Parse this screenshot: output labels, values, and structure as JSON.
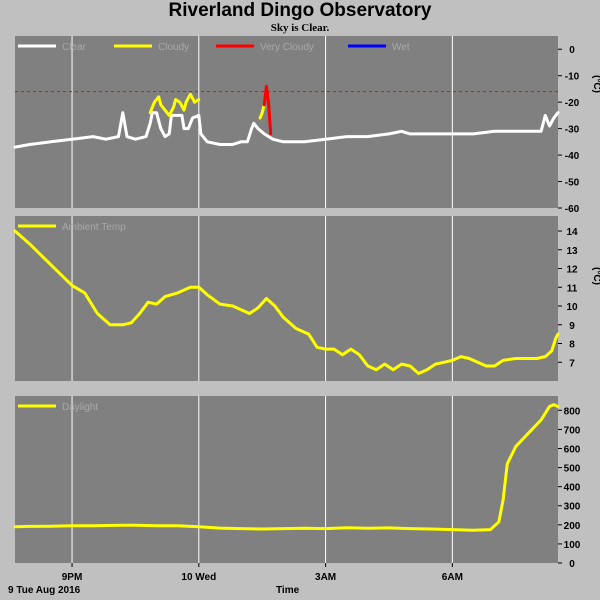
{
  "title": "Riverland Dingo Observatory",
  "subtitle": "Sky is Clear.",
  "footer": {
    "date": "9 Tue Aug 2016",
    "xlabel": "Time"
  },
  "x_ticks": [
    {
      "label": "9PM",
      "hour": 21
    },
    {
      "label": "10 Wed",
      "hour": 24
    },
    {
      "label": "3AM",
      "hour": 27
    },
    {
      "label": "6AM",
      "hour": 30
    }
  ],
  "x_range_hours": [
    19.65,
    32.5
  ],
  "chart_data": [
    {
      "type": "line",
      "unit": "(°C)",
      "ylim": [
        -60,
        5
      ],
      "yticks": [
        0,
        -10,
        -20,
        -30,
        -40,
        -50,
        -60
      ],
      "threshold": {
        "value": -16,
        "color": "#ff0000",
        "style": "dashed"
      },
      "legend": [
        {
          "name": "Clear",
          "color": "#ffffff"
        },
        {
          "name": "Cloudy",
          "color": "#ffff00"
        },
        {
          "name": "Very Cloudy",
          "color": "#ff0000"
        },
        {
          "name": "Wet",
          "color": "#0000ff"
        }
      ],
      "series": [
        {
          "name": "Clear",
          "color": "#ffffff",
          "segments": [
            [
              [
                19.65,
                -37
              ],
              [
                20.0,
                -36
              ],
              [
                20.5,
                -35
              ],
              [
                21.0,
                -34
              ],
              [
                21.5,
                -33
              ],
              [
                21.8,
                -34
              ],
              [
                22.1,
                -33
              ],
              [
                22.2,
                -24
              ],
              [
                22.3,
                -33
              ],
              [
                22.5,
                -34
              ],
              [
                22.75,
                -33
              ],
              [
                22.85,
                -28
              ],
              [
                22.9,
                -24
              ],
              [
                23.0,
                -24
              ],
              [
                23.05,
                -27
              ],
              [
                23.1,
                -30
              ],
              [
                23.2,
                -33
              ],
              [
                23.3,
                -32
              ],
              [
                23.35,
                -25
              ],
              [
                23.5,
                -25
              ],
              [
                23.6,
                -25
              ],
              [
                23.65,
                -30
              ],
              [
                23.75,
                -30
              ],
              [
                23.85,
                -26
              ],
              [
                24.0,
                -25
              ],
              [
                24.05,
                -32
              ],
              [
                24.2,
                -35
              ],
              [
                24.5,
                -36
              ],
              [
                24.8,
                -36
              ],
              [
                25.0,
                -35
              ],
              [
                25.15,
                -35
              ],
              [
                25.25,
                -30
              ],
              [
                25.3,
                -28
              ],
              [
                25.4,
                -30
              ],
              [
                25.55,
                -32
              ],
              [
                25.75,
                -34
              ],
              [
                26.0,
                -35
              ],
              [
                26.5,
                -35
              ],
              [
                27.0,
                -34
              ],
              [
                27.5,
                -33
              ],
              [
                28.0,
                -33
              ],
              [
                28.5,
                -32
              ],
              [
                28.8,
                -31
              ],
              [
                29.0,
                -32
              ],
              [
                29.5,
                -32
              ],
              [
                30.0,
                -32
              ],
              [
                30.5,
                -32
              ],
              [
                31.0,
                -31
              ],
              [
                31.5,
                -31
              ],
              [
                32.0,
                -31
              ],
              [
                32.1,
                -31
              ],
              [
                32.2,
                -25
              ],
              [
                32.3,
                -29
              ],
              [
                32.4,
                -26
              ],
              [
                32.5,
                -24
              ]
            ]
          ]
        },
        {
          "name": "Cloudy",
          "color": "#ffff00",
          "segments": [
            [
              [
                22.85,
                -24
              ],
              [
                22.95,
                -20
              ],
              [
                23.05,
                -18
              ],
              [
                23.1,
                -21
              ],
              [
                23.2,
                -23
              ],
              [
                23.3,
                -25
              ],
              [
                23.4,
                -22
              ],
              [
                23.45,
                -19
              ],
              [
                23.55,
                -20
              ],
              [
                23.65,
                -23
              ],
              [
                23.7,
                -20
              ],
              [
                23.8,
                -17
              ],
              [
                23.9,
                -20
              ],
              [
                24.0,
                -19
              ]
            ],
            [
              [
                25.45,
                -26
              ],
              [
                25.5,
                -24
              ],
              [
                25.55,
                -21
              ]
            ]
          ]
        },
        {
          "name": "Very Cloudy",
          "color": "#ff0000",
          "segments": [
            [
              [
                25.55,
                -21
              ],
              [
                25.6,
                -14
              ],
              [
                25.65,
                -20
              ],
              [
                25.7,
                -32
              ]
            ]
          ]
        }
      ]
    },
    {
      "type": "line",
      "unit": "(°C)",
      "ylim": [
        6,
        14.8
      ],
      "yticks": [
        14,
        13,
        12,
        11,
        10,
        9,
        8,
        7
      ],
      "legend": [
        {
          "name": "Ambient Temp",
          "color": "#ffff00"
        }
      ],
      "series": [
        {
          "name": "Ambient Temp",
          "color": "#ffff00",
          "segments": [
            [
              [
                19.65,
                14
              ],
              [
                20.0,
                13.3
              ],
              [
                20.5,
                12.2
              ],
              [
                21.0,
                11.1
              ],
              [
                21.3,
                10.7
              ],
              [
                21.6,
                9.6
              ],
              [
                21.9,
                9.0
              ],
              [
                22.2,
                9.0
              ],
              [
                22.4,
                9.1
              ],
              [
                22.6,
                9.6
              ],
              [
                22.8,
                10.2
              ],
              [
                23.0,
                10.1
              ],
              [
                23.2,
                10.5
              ],
              [
                23.5,
                10.7
              ],
              [
                23.8,
                11.0
              ],
              [
                24.0,
                11.0
              ],
              [
                24.2,
                10.6
              ],
              [
                24.5,
                10.1
              ],
              [
                24.8,
                10.0
              ],
              [
                25.0,
                9.8
              ],
              [
                25.2,
                9.6
              ],
              [
                25.4,
                9.9
              ],
              [
                25.6,
                10.4
              ],
              [
                25.8,
                10.0
              ],
              [
                26.0,
                9.4
              ],
              [
                26.3,
                8.8
              ],
              [
                26.6,
                8.5
              ],
              [
                26.8,
                7.8
              ],
              [
                27.0,
                7.7
              ],
              [
                27.2,
                7.7
              ],
              [
                27.4,
                7.4
              ],
              [
                27.6,
                7.7
              ],
              [
                27.8,
                7.4
              ],
              [
                28.0,
                6.8
              ],
              [
                28.2,
                6.6
              ],
              [
                28.4,
                6.9
              ],
              [
                28.6,
                6.6
              ],
              [
                28.8,
                6.9
              ],
              [
                29.0,
                6.8
              ],
              [
                29.2,
                6.4
              ],
              [
                29.4,
                6.6
              ],
              [
                29.6,
                6.9
              ],
              [
                29.8,
                7.0
              ],
              [
                30.0,
                7.1
              ],
              [
                30.2,
                7.3
              ],
              [
                30.4,
                7.2
              ],
              [
                30.6,
                7.0
              ],
              [
                30.8,
                6.8
              ],
              [
                31.0,
                6.8
              ],
              [
                31.2,
                7.1
              ],
              [
                31.5,
                7.2
              ],
              [
                32.0,
                7.2
              ],
              [
                32.2,
                7.3
              ],
              [
                32.35,
                7.6
              ],
              [
                32.45,
                8.3
              ],
              [
                32.5,
                8.5
              ]
            ]
          ]
        }
      ]
    },
    {
      "type": "line",
      "unit": "",
      "ylim": [
        0,
        875
      ],
      "yticks": [
        800,
        700,
        600,
        500,
        400,
        300,
        200,
        100,
        0
      ],
      "legend": [
        {
          "name": "Daylight",
          "color": "#ffff00"
        }
      ],
      "series": [
        {
          "name": "Daylight",
          "color": "#ffff00",
          "segments": [
            [
              [
                19.65,
                190
              ],
              [
                20.0,
                192
              ],
              [
                20.5,
                193
              ],
              [
                21.0,
                195
              ],
              [
                21.5,
                195
              ],
              [
                22.0,
                197
              ],
              [
                22.5,
                198
              ],
              [
                23.0,
                195
              ],
              [
                23.5,
                195
              ],
              [
                24.0,
                190
              ],
              [
                24.5,
                183
              ],
              [
                25.0,
                180
              ],
              [
                25.5,
                178
              ],
              [
                26.0,
                180
              ],
              [
                26.5,
                182
              ],
              [
                27.0,
                180
              ],
              [
                27.5,
                185
              ],
              [
                28.0,
                182
              ],
              [
                28.5,
                184
              ],
              [
                29.0,
                180
              ],
              [
                29.5,
                178
              ],
              [
                30.0,
                175
              ],
              [
                30.5,
                172
              ],
              [
                30.9,
                175
              ],
              [
                31.1,
                215
              ],
              [
                31.2,
                330
              ],
              [
                31.3,
                520
              ],
              [
                31.5,
                610
              ],
              [
                31.8,
                680
              ],
              [
                32.1,
                750
              ],
              [
                32.3,
                820
              ],
              [
                32.4,
                830
              ],
              [
                32.5,
                820
              ]
            ]
          ]
        }
      ]
    }
  ]
}
